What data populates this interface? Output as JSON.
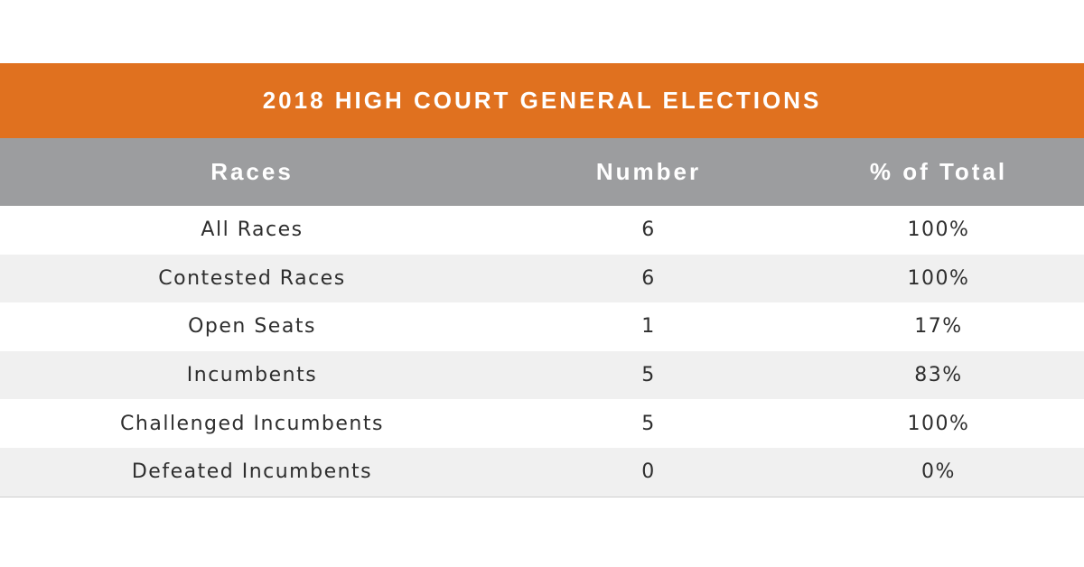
{
  "chart_data": {
    "type": "table",
    "title": "2018 HIGH COURT GENERAL ELECTIONS",
    "columns": [
      "Races",
      "Number",
      "% of Total"
    ],
    "rows": [
      {
        "race": "All Races",
        "number": "6",
        "percent": "100%"
      },
      {
        "race": "Contested Races",
        "number": "6",
        "percent": "100%"
      },
      {
        "race": "Open Seats",
        "number": "1",
        "percent": "17%"
      },
      {
        "race": "Incumbents",
        "number": "5",
        "percent": "83%"
      },
      {
        "race": "Challenged Incumbents",
        "number": "5",
        "percent": "100%"
      },
      {
        "race": "Defeated Incumbents",
        "number": "0",
        "percent": "0%"
      }
    ]
  },
  "colors": {
    "title_bar": "#e0711f",
    "header_bar": "#9c9d9f",
    "row_alt": "#f0f0f0",
    "text": "#2e2e2e"
  }
}
